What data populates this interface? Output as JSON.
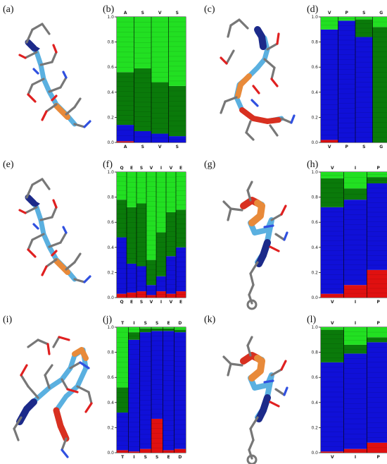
{
  "panels": [
    {
      "id": "a",
      "label": "(a)",
      "kind": "structure",
      "col": 0,
      "row": 0,
      "variant": "helix-extended"
    },
    {
      "id": "b",
      "label": "(b)",
      "kind": "chart",
      "col": 1,
      "row": 0
    },
    {
      "id": "c",
      "label": "(c)",
      "kind": "structure",
      "col": 2,
      "row": 0,
      "variant": "loop-ring"
    },
    {
      "id": "d",
      "label": "(d)",
      "kind": "chart",
      "col": 3,
      "row": 0
    },
    {
      "id": "e",
      "label": "(e)",
      "kind": "structure",
      "col": 0,
      "row": 1,
      "variant": "helix-extended"
    },
    {
      "id": "f",
      "label": "(f)",
      "kind": "chart",
      "col": 1,
      "row": 1
    },
    {
      "id": "g",
      "label": "(g)",
      "kind": "structure",
      "col": 2,
      "row": 1,
      "variant": "short-helix"
    },
    {
      "id": "h",
      "label": "(h)",
      "kind": "chart",
      "col": 3,
      "row": 1
    },
    {
      "id": "i",
      "label": "(i)",
      "kind": "structure",
      "col": 0,
      "row": 2,
      "variant": "loop-complex"
    },
    {
      "id": "j",
      "label": "(j)",
      "kind": "chart",
      "col": 1,
      "row": 2
    },
    {
      "id": "k",
      "label": "(k)",
      "kind": "structure",
      "col": 2,
      "row": 2,
      "variant": "short-helix"
    },
    {
      "id": "l",
      "label": "(l)",
      "kind": "chart",
      "col": 3,
      "row": 2
    }
  ],
  "colors": {
    "light_green": "#22e022",
    "dark_green": "#0a7a0a",
    "mid_green": "#14a814",
    "blue": "#1010d8",
    "red": "#e01010",
    "ribbon_red": "#d83020",
    "ribbon_orange": "#e88a3a",
    "ribbon_blue": "#5ab0e0",
    "ribbon_navy": "#1c2a8a",
    "stick_gray": "#777777",
    "stick_red": "#e02020",
    "stick_blue": "#3050e0"
  },
  "chart_data": [
    {
      "id": "b",
      "type": "bar",
      "categories": [
        "A",
        "S",
        "V",
        "S"
      ],
      "ylim": [
        0,
        1.0
      ],
      "yticks": [
        "0.0",
        "0.2",
        "0.4",
        "0.6",
        "0.8",
        "1.0"
      ],
      "series": [
        {
          "color": "red",
          "values": [
            0.01,
            0.0,
            0.0,
            0.0
          ]
        },
        {
          "color": "blue",
          "values": [
            0.13,
            0.09,
            0.07,
            0.05
          ]
        },
        {
          "color": "dark_green",
          "values": [
            0.42,
            0.5,
            0.41,
            0.4
          ]
        },
        {
          "color": "light_green",
          "values": [
            0.44,
            0.41,
            0.52,
            0.55
          ]
        }
      ]
    },
    {
      "id": "d",
      "type": "bar",
      "categories": [
        "V",
        "P",
        "S",
        "G"
      ],
      "ylim": [
        0,
        1.0
      ],
      "yticks": [
        "0.0",
        "0.2",
        "0.4",
        "0.6",
        "0.8",
        "1.0"
      ],
      "series": [
        {
          "color": "red",
          "values": [
            0.02,
            0.0,
            0.0,
            0.0
          ]
        },
        {
          "color": "blue",
          "values": [
            0.88,
            0.97,
            0.84,
            0.0
          ]
        },
        {
          "color": "dark_green",
          "values": [
            0.0,
            0.0,
            0.14,
            0.92
          ]
        },
        {
          "color": "light_green",
          "values": [
            0.1,
            0.03,
            0.02,
            0.08
          ]
        }
      ]
    },
    {
      "id": "f",
      "type": "bar",
      "categories": [
        "Q",
        "E",
        "S",
        "V",
        "I",
        "V",
        "E"
      ],
      "ylim": [
        0,
        1.0
      ],
      "yticks": [
        "0.0",
        "0.2",
        "0.4",
        "0.6",
        "0.8",
        "1.0"
      ],
      "series": [
        {
          "color": "red",
          "values": [
            0.03,
            0.04,
            0.05,
            0.02,
            0.05,
            0.03,
            0.05
          ]
        },
        {
          "color": "blue",
          "values": [
            0.45,
            0.23,
            0.2,
            0.08,
            0.12,
            0.3,
            0.35
          ]
        },
        {
          "color": "dark_green",
          "values": [
            0.3,
            0.45,
            0.5,
            0.2,
            0.35,
            0.35,
            0.3
          ]
        },
        {
          "color": "light_green",
          "values": [
            0.22,
            0.28,
            0.25,
            0.7,
            0.48,
            0.32,
            0.3
          ]
        }
      ]
    },
    {
      "id": "h",
      "type": "bar",
      "categories": [
        "V",
        "I",
        "P"
      ],
      "ylim": [
        0,
        1.0
      ],
      "yticks": [
        "0.0",
        "0.2",
        "0.4",
        "0.6",
        "0.8",
        "1.0"
      ],
      "series": [
        {
          "color": "red",
          "values": [
            0.03,
            0.1,
            0.22
          ]
        },
        {
          "color": "blue",
          "values": [
            0.69,
            0.68,
            0.69
          ]
        },
        {
          "color": "dark_green",
          "values": [
            0.23,
            0.09,
            0.05
          ]
        },
        {
          "color": "light_green",
          "values": [
            0.05,
            0.13,
            0.04
          ]
        }
      ]
    },
    {
      "id": "j",
      "type": "bar",
      "categories": [
        "T",
        "I",
        "S",
        "S",
        "E",
        "D"
      ],
      "ylim": [
        0,
        1.0
      ],
      "yticks": [
        "0.0",
        "0.2",
        "0.4",
        "0.6",
        "0.8",
        "1.0"
      ],
      "series": [
        {
          "color": "red",
          "values": [
            0.02,
            0.01,
            0.03,
            0.27,
            0.02,
            0.03
          ]
        },
        {
          "color": "blue",
          "values": [
            0.3,
            0.89,
            0.93,
            0.7,
            0.95,
            0.93
          ]
        },
        {
          "color": "dark_green",
          "values": [
            0.2,
            0.06,
            0.03,
            0.02,
            0.02,
            0.02
          ]
        },
        {
          "color": "light_green",
          "values": [
            0.48,
            0.04,
            0.01,
            0.01,
            0.01,
            0.02
          ]
        }
      ]
    },
    {
      "id": "l",
      "type": "bar",
      "categories": [
        "V",
        "I",
        "P"
      ],
      "ylim": [
        0,
        1.0
      ],
      "yticks": [
        "0.0",
        "0.2",
        "0.4",
        "0.6",
        "0.8",
        "1.0"
      ],
      "series": [
        {
          "color": "red",
          "values": [
            0.01,
            0.03,
            0.08
          ]
        },
        {
          "color": "blue",
          "values": [
            0.71,
            0.76,
            0.8
          ]
        },
        {
          "color": "dark_green",
          "values": [
            0.26,
            0.07,
            0.04
          ]
        },
        {
          "color": "light_green",
          "values": [
            0.02,
            0.14,
            0.08
          ]
        }
      ]
    }
  ]
}
